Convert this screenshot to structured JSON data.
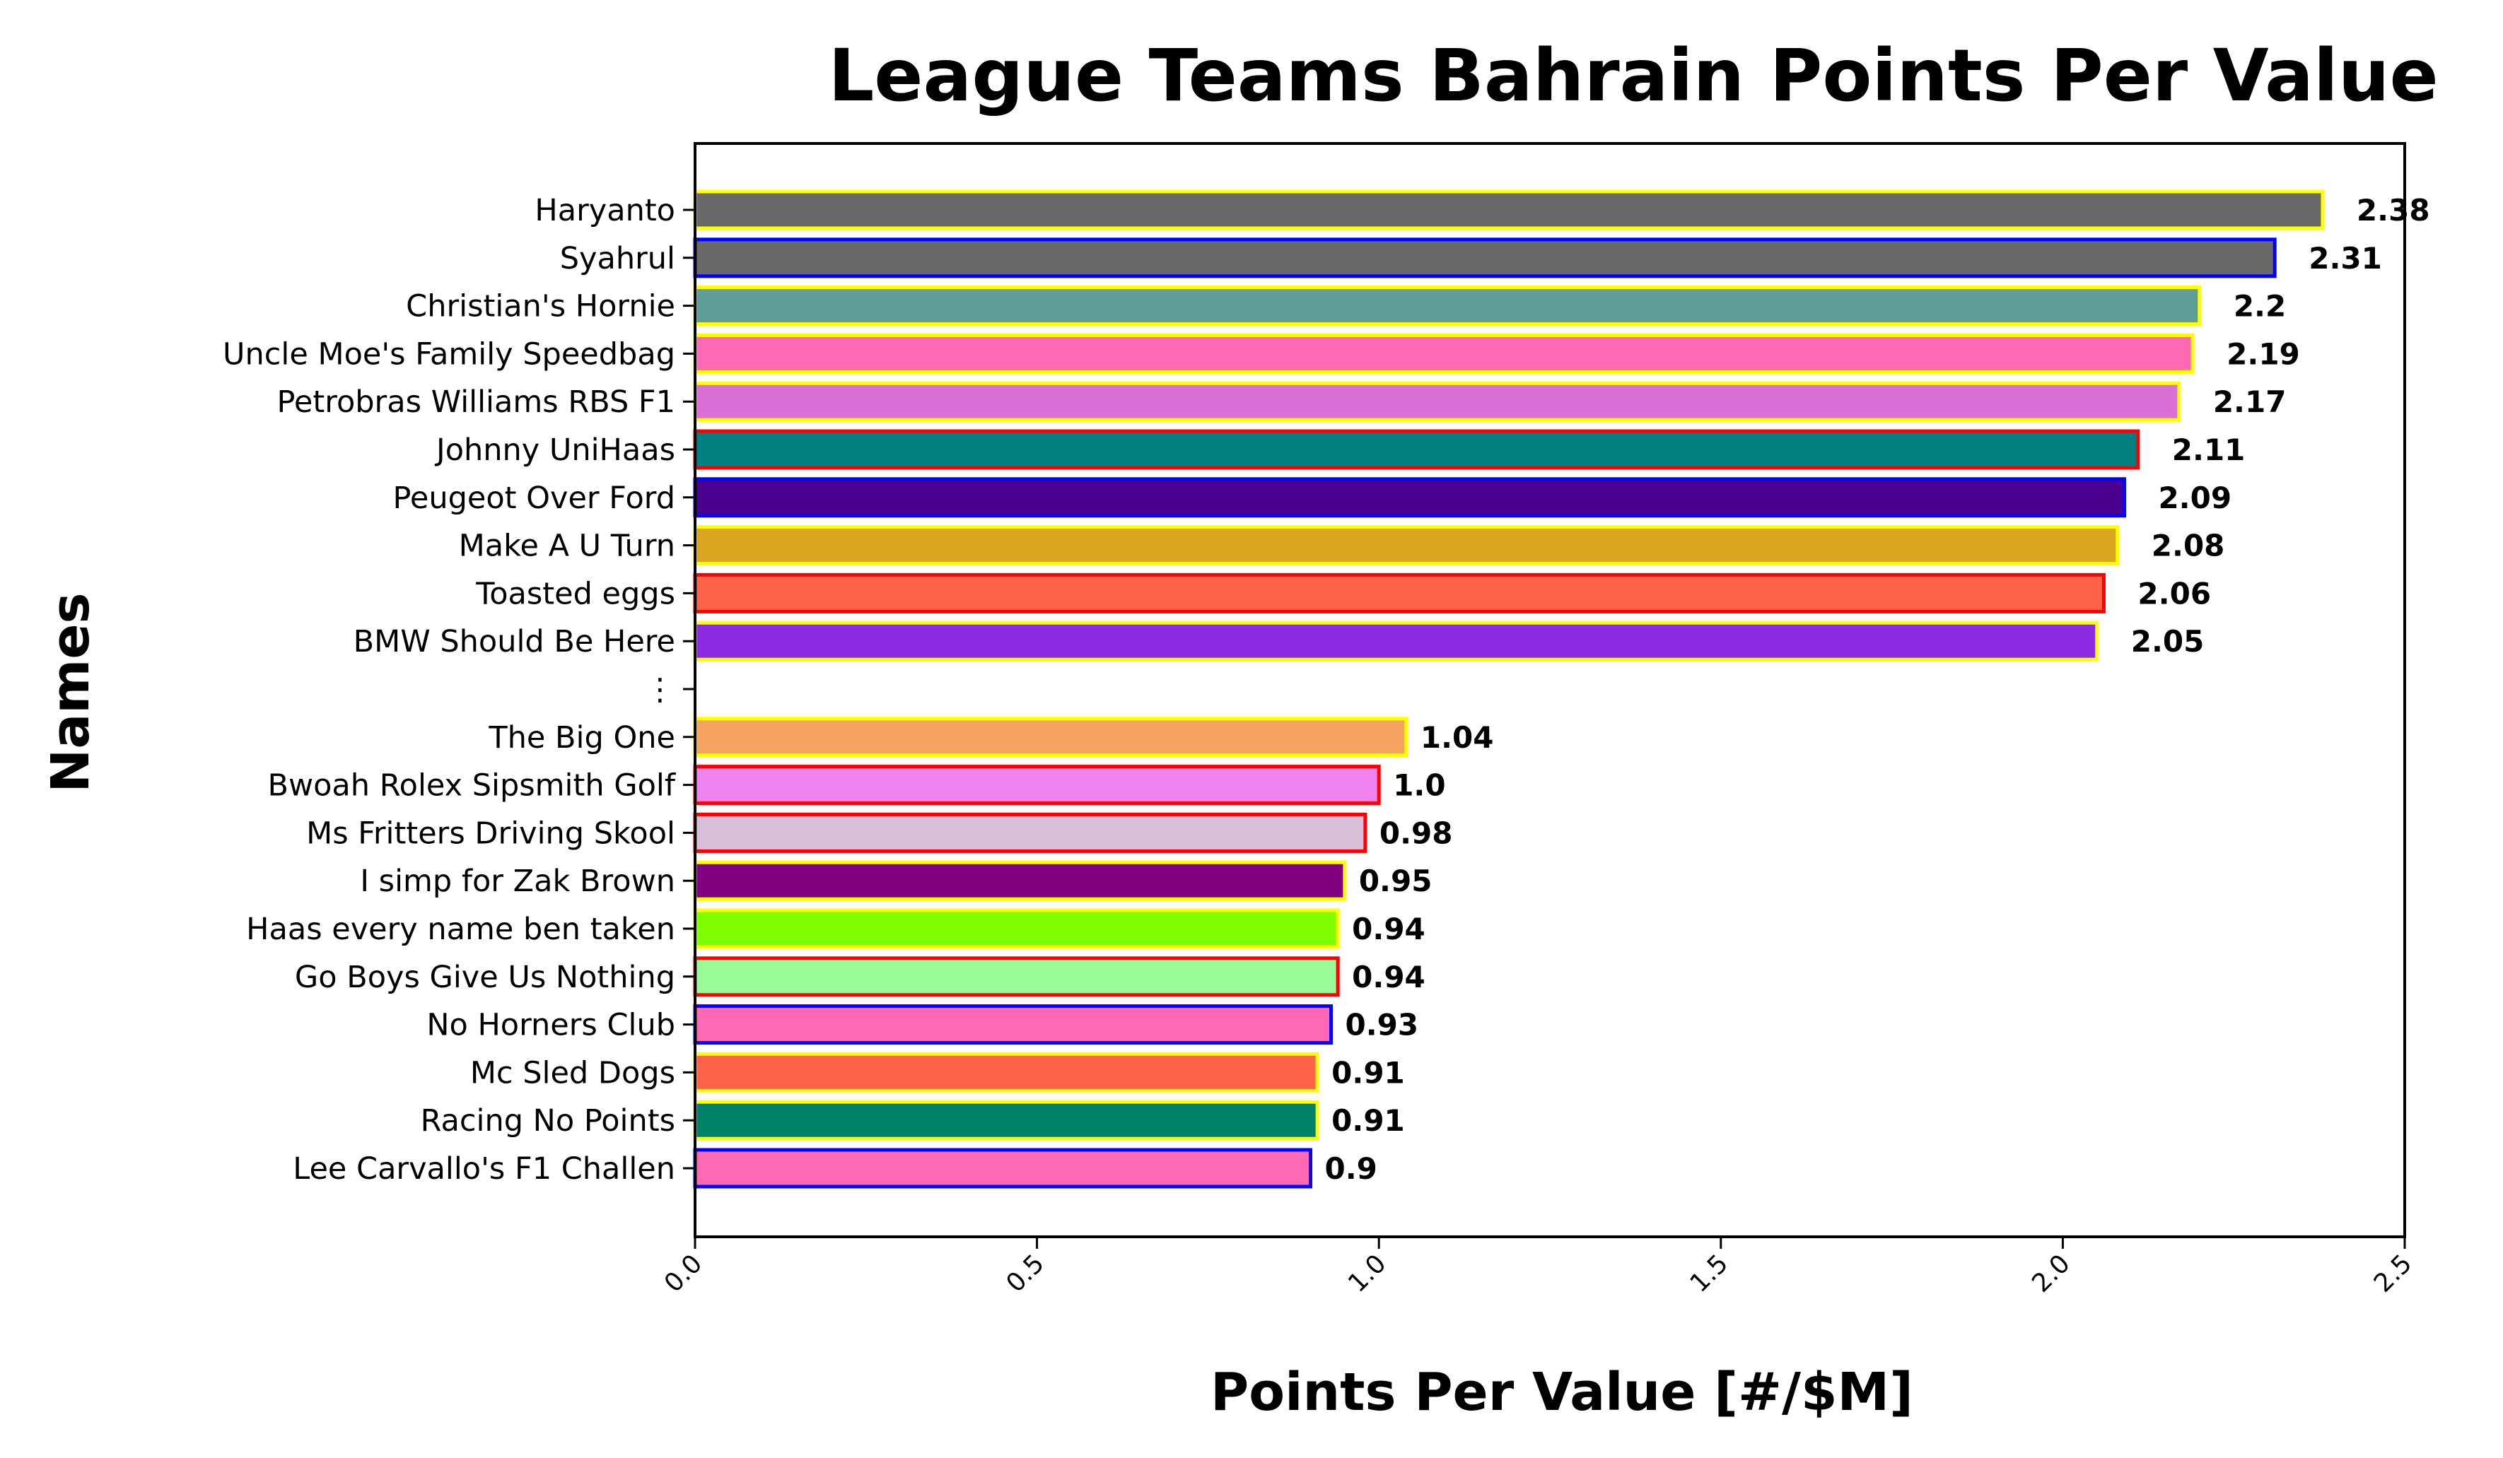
{
  "chart_data": {
    "type": "bar",
    "orientation": "horizontal",
    "title": "League Teams Bahrain Points Per Value",
    "xlabel": "Points Per Value [#/$M]",
    "ylabel": "Names",
    "xlim": [
      0,
      2.5
    ],
    "xticks": [
      "0.0",
      "0.5",
      "1.0",
      "1.5",
      "2.0",
      "2.5"
    ],
    "xtick_values": [
      0,
      0.5,
      1.0,
      1.5,
      2.0,
      2.5
    ],
    "grid": false,
    "legend": "none",
    "bars": [
      {
        "name": "Haryanto",
        "value": 2.38,
        "label": "2.38",
        "color": "#696969",
        "edge": "#ffff00"
      },
      {
        "name": "Syahrul",
        "value": 2.31,
        "label": "2.31",
        "color": "#696969",
        "edge": "#0000ff"
      },
      {
        "name": "Christian's Hornie",
        "value": 2.2,
        "label": "2.2",
        "color": "#5f9e98",
        "edge": "#ffff00"
      },
      {
        "name": "Uncle Moe's Family Speedbag",
        "value": 2.19,
        "label": "2.19",
        "color": "#ff69b4",
        "edge": "#ffff00"
      },
      {
        "name": "Petrobras Williams RBS F1",
        "value": 2.17,
        "label": "2.17",
        "color": "#da70d6",
        "edge": "#ffff00"
      },
      {
        "name": "Johnny UniHaas",
        "value": 2.11,
        "label": "2.11",
        "color": "#008080",
        "edge": "#ff0000"
      },
      {
        "name": "Peugeot Over Ford",
        "value": 2.09,
        "label": "2.09",
        "color": "#4b0090",
        "edge": "#0000ff"
      },
      {
        "name": "Make A U Turn",
        "value": 2.08,
        "label": "2.08",
        "color": "#daa520",
        "edge": "#ffff00"
      },
      {
        "name": "Toasted eggs",
        "value": 2.06,
        "label": "2.06",
        "color": "#ff6347",
        "edge": "#ff0000"
      },
      {
        "name": "BMW Should Be Here",
        "value": 2.05,
        "label": "2.05",
        "color": "#8a2be2",
        "edge": "#ffff00"
      },
      {
        "name": "⋮",
        "value": null,
        "label": "",
        "color": "",
        "edge": ""
      },
      {
        "name": "The Big One",
        "value": 1.04,
        "label": "1.04",
        "color": "#f4a460",
        "edge": "#ffff00"
      },
      {
        "name": "Bwoah Rolex Sipsmith Golf",
        "value": 1.0,
        "label": "1.0",
        "color": "#ee82ee",
        "edge": "#ff0000"
      },
      {
        "name": "Ms Fritters Driving Skool",
        "value": 0.98,
        "label": "0.98",
        "color": "#d8bfd8",
        "edge": "#ff0000"
      },
      {
        "name": "I simp for Zak Brown",
        "value": 0.95,
        "label": "0.95",
        "color": "#800080",
        "edge": "#ffff00"
      },
      {
        "name": "Haas every name ben taken",
        "value": 0.94,
        "label": "0.94",
        "color": "#7fff00",
        "edge": "#ffff00"
      },
      {
        "name": "Go Boys Give Us Nothing",
        "value": 0.94,
        "label": "0.94",
        "color": "#98fb98",
        "edge": "#ff0000"
      },
      {
        "name": "No Horners Club",
        "value": 0.93,
        "label": "0.93",
        "color": "#ff69b4",
        "edge": "#0000ff"
      },
      {
        "name": "Mc Sled Dogs",
        "value": 0.91,
        "label": "0.91",
        "color": "#ff6347",
        "edge": "#ffff00"
      },
      {
        "name": "Racing No Points",
        "value": 0.91,
        "label": "0.91",
        "color": "#008066",
        "edge": "#ffff00"
      },
      {
        "name": "Lee Carvallo's F1 Challen",
        "value": 0.9,
        "label": "0.9",
        "color": "#ff69b4",
        "edge": "#0000ff"
      }
    ]
  }
}
